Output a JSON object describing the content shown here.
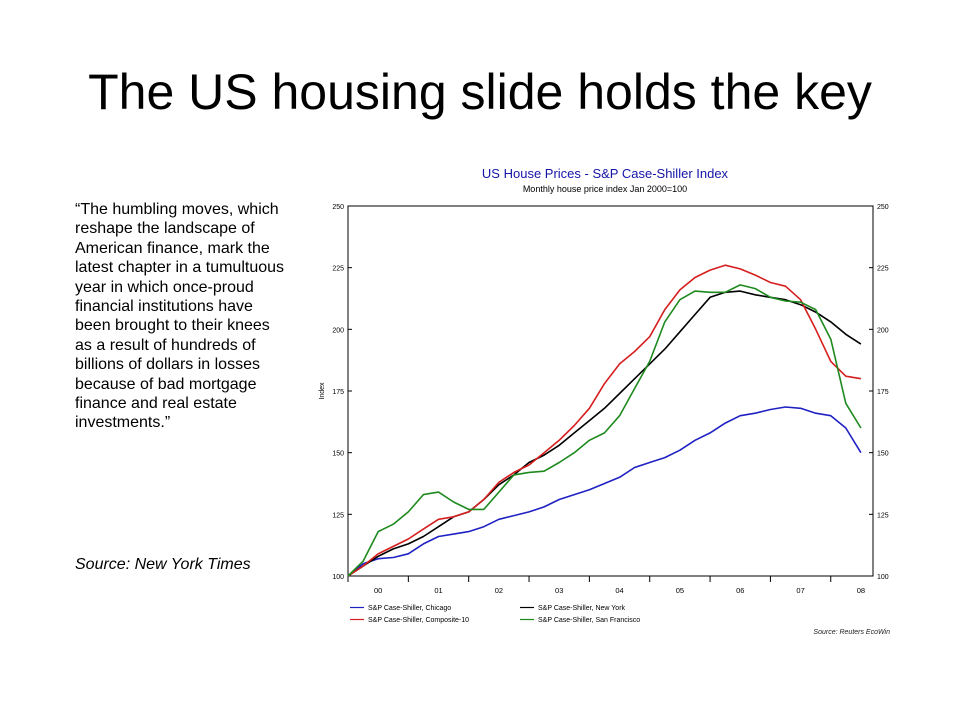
{
  "slide": {
    "title": "The US housing slide holds the key",
    "quote": "“The humbling moves, which reshape the landscape of American finance, mark the latest chapter in a tumultuous year in which once-proud financial institutions have been brought to their knees as a result of hundreds of billions of dollars in losses because of bad mortgage finance and real estate investments.”",
    "source": "Source: New York Times"
  },
  "chart_data": {
    "type": "line",
    "title": "US House Prices - S&P Case-Shiller Index",
    "subtitle": "Monthly house price index Jan 2000=100",
    "ylabel": "Index",
    "xlabel": "",
    "ylim": [
      100,
      250
    ],
    "yticks": [
      100,
      125,
      150,
      175,
      200,
      225,
      250
    ],
    "xlim": [
      2000.0,
      2008.7
    ],
    "xticks": [
      {
        "label": "00",
        "x": 2000.5
      },
      {
        "label": "01",
        "x": 2001.5
      },
      {
        "label": "02",
        "x": 2002.5
      },
      {
        "label": "03",
        "x": 2003.5
      },
      {
        "label": "04",
        "x": 2004.5
      },
      {
        "label": "05",
        "x": 2005.5
      },
      {
        "label": "06",
        "x": 2006.5
      },
      {
        "label": "07",
        "x": 2007.5
      },
      {
        "label": "08",
        "x": 2008.5
      }
    ],
    "grid": false,
    "legend_position": "bottom",
    "source_note": "Source: Reuters EcoWin",
    "series": [
      {
        "name": "S&P Case-Shiller, Chicago",
        "color": "#1f22c2",
        "x": [
          2000.0,
          2000.25,
          2000.5,
          2000.75,
          2001.0,
          2001.25,
          2001.5,
          2001.75,
          2002.0,
          2002.25,
          2002.5,
          2002.75,
          2003.0,
          2003.25,
          2003.5,
          2003.75,
          2004.0,
          2004.25,
          2004.5,
          2004.75,
          2005.0,
          2005.25,
          2005.5,
          2005.75,
          2006.0,
          2006.25,
          2006.5,
          2006.75,
          2007.0,
          2007.25,
          2007.5,
          2007.75,
          2008.0,
          2008.25,
          2008.5
        ],
        "y": [
          100,
          105,
          107,
          107.5,
          109,
          113,
          116,
          117,
          118,
          120,
          123,
          124.5,
          126,
          128,
          131,
          133,
          135,
          137.5,
          140,
          144,
          146,
          148,
          151,
          155,
          158,
          162,
          165,
          166,
          167.5,
          168.5,
          168,
          166,
          165,
          160,
          150
        ]
      },
      {
        "name": "S&P Case-Shiller, New York",
        "color": "#000000",
        "x": [
          2000.0,
          2000.25,
          2000.5,
          2000.75,
          2001.0,
          2001.25,
          2001.5,
          2001.75,
          2002.0,
          2002.25,
          2002.5,
          2002.75,
          2003.0,
          2003.25,
          2003.5,
          2003.75,
          2004.0,
          2004.25,
          2004.5,
          2004.75,
          2005.0,
          2005.25,
          2005.5,
          2005.75,
          2006.0,
          2006.25,
          2006.5,
          2006.75,
          2007.0,
          2007.25,
          2007.5,
          2007.75,
          2008.0,
          2008.25,
          2008.5
        ],
        "y": [
          100,
          104,
          108,
          111,
          113,
          116,
          120,
          124,
          126,
          131,
          137,
          141,
          146,
          149,
          153,
          158,
          163,
          168,
          174,
          180,
          186,
          192,
          199,
          206,
          213,
          215,
          215.5,
          214,
          213,
          212,
          210,
          207,
          203,
          198,
          194
        ]
      },
      {
        "name": "S&P Case-Shiller, Composite-10",
        "color": "#d61f1f",
        "x": [
          2000.0,
          2000.25,
          2000.5,
          2000.75,
          2001.0,
          2001.25,
          2001.5,
          2001.75,
          2002.0,
          2002.25,
          2002.5,
          2002.75,
          2003.0,
          2003.25,
          2003.5,
          2003.75,
          2004.0,
          2004.25,
          2004.5,
          2004.75,
          2005.0,
          2005.25,
          2005.5,
          2005.75,
          2006.0,
          2006.25,
          2006.5,
          2006.75,
          2007.0,
          2007.25,
          2007.5,
          2007.75,
          2008.0,
          2008.25,
          2008.5
        ],
        "y": [
          100,
          104,
          109,
          112,
          115,
          119,
          123,
          124,
          126,
          131,
          138,
          142,
          145,
          150,
          155,
          161,
          168,
          178,
          186,
          191,
          197,
          208,
          216,
          221,
          224,
          226,
          224.5,
          222,
          219,
          217.5,
          212,
          200,
          187,
          181,
          180
        ]
      },
      {
        "name": "S&P Case-Shiller, San Francisco",
        "color": "#1e8a1e",
        "x": [
          2000.0,
          2000.25,
          2000.5,
          2000.75,
          2001.0,
          2001.25,
          2001.5,
          2001.75,
          2002.0,
          2002.25,
          2002.5,
          2002.75,
          2003.0,
          2003.25,
          2003.5,
          2003.75,
          2004.0,
          2004.25,
          2004.5,
          2004.75,
          2005.0,
          2005.25,
          2005.5,
          2005.75,
          2006.0,
          2006.25,
          2006.5,
          2006.75,
          2007.0,
          2007.25,
          2007.5,
          2007.75,
          2008.0,
          2008.25,
          2008.5
        ],
        "y": [
          100,
          106,
          118,
          121,
          126,
          133,
          134,
          130,
          127,
          127,
          134,
          141,
          142,
          142.5,
          146,
          150,
          155,
          158,
          165,
          176,
          187,
          203,
          212,
          215.5,
          215,
          215,
          218,
          216.5,
          213,
          211.5,
          211,
          208,
          196,
          170,
          160
        ]
      }
    ]
  }
}
